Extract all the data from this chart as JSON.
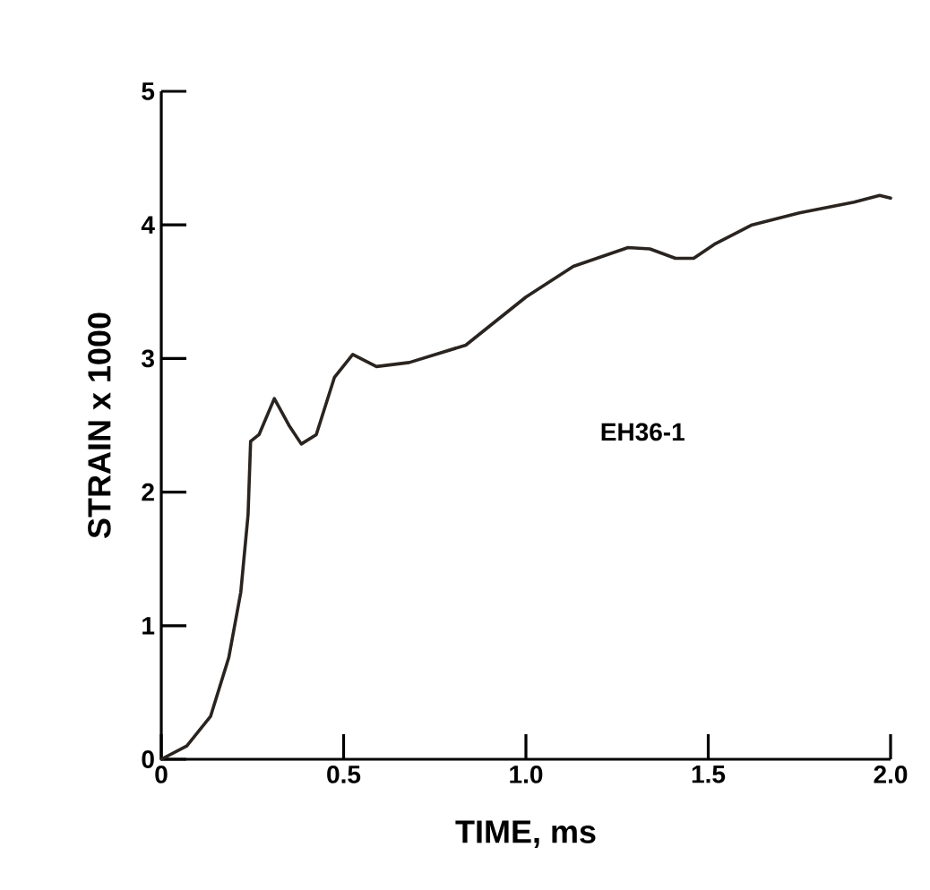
{
  "chart_data": {
    "type": "line",
    "xlabel": "TIME, ms",
    "ylabel": "STRAIN x 1000",
    "annotations": [
      "EH36-1"
    ],
    "xlim": [
      0,
      2.0
    ],
    "ylim": [
      0,
      5
    ],
    "xticks": [
      0,
      0.5,
      {
        "value": 1.0,
        "label": "1.0"
      },
      1.5,
      {
        "value": 2.0,
        "label": "2.0"
      }
    ],
    "yticks": [
      0,
      1,
      2,
      3,
      4,
      5
    ],
    "marker": "none",
    "line_style": "solid",
    "series": [
      {
        "color": "#2a2420",
        "x": [
          0,
          0.07,
          0.135,
          0.185,
          0.218,
          0.238,
          0.245,
          0.268,
          0.31,
          0.35,
          0.384,
          0.425,
          0.475,
          0.525,
          0.59,
          0.68,
          0.835,
          1.0,
          1.13,
          1.28,
          1.34,
          1.41,
          1.46,
          1.52,
          1.62,
          1.75,
          1.9,
          1.97,
          2.0
        ],
        "values": [
          0,
          0.1,
          0.32,
          0.76,
          1.25,
          1.83,
          2.38,
          2.43,
          2.7,
          2.5,
          2.36,
          2.43,
          2.86,
          3.03,
          2.94,
          2.97,
          3.1,
          3.46,
          3.69,
          3.83,
          3.82,
          3.75,
          3.75,
          3.86,
          4.0,
          4.09,
          4.17,
          4.22,
          4.2
        ]
      }
    ]
  }
}
